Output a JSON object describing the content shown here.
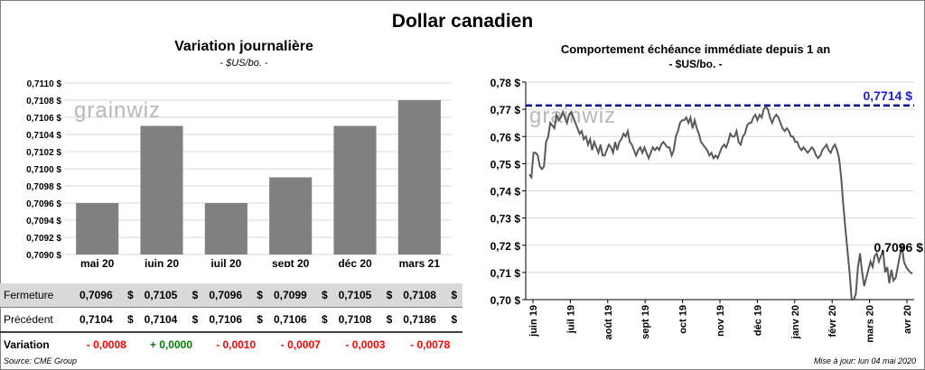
{
  "title": "Dollar canadien",
  "left_chart": {
    "title": "Variation  journalière",
    "subtitle": "- $US/bo. -"
  },
  "right_chart": {
    "title": "Comportement échéance immédiate depuis 1 an",
    "subtitle": "- $US/bo. -",
    "reference_label": "0,7714 $",
    "last_label": "0,7096 $"
  },
  "watermark": "grainwiz",
  "table": {
    "rows": [
      {
        "label": "Fermeture",
        "values": [
          "0,7096",
          "0,7105",
          "0,7096",
          "0,7099",
          "0,7105",
          "0,7108"
        ],
        "unit": "$"
      },
      {
        "label": "Précédent",
        "values": [
          "0,7104",
          "0,7104",
          "0,7106",
          "0,7106",
          "0,7108",
          "0,7186"
        ],
        "unit": "$"
      },
      {
        "label": "Variation",
        "values": [
          "- 0,0008",
          "+ 0,0000",
          "- 0,0010",
          "- 0,0007",
          "- 0,0003",
          "- 0,0078"
        ]
      }
    ]
  },
  "footer": {
    "source": "Source: CME Group",
    "updated": "Mise à jour: lun 04 mai 2020"
  },
  "colors": {
    "bar": "#808080",
    "line": "#595959",
    "ref_line": "#00008b",
    "ref_label": "#1f1fcc",
    "negative": "#ff0000",
    "positive": "#008000"
  },
  "chart_data": [
    {
      "type": "bar",
      "categories": [
        "mai 20",
        "juin 20",
        "juil 20",
        "sept 20",
        "déc 20",
        "mars 21"
      ],
      "values": [
        0.7096,
        0.7105,
        0.7096,
        0.7099,
        0.7105,
        0.7108
      ],
      "ylim": [
        0.709,
        0.711
      ],
      "yticks": [
        "0,7090 $",
        "0,7092 $",
        "0,7094 $",
        "0,7096 $",
        "0,7098 $",
        "0,7100 $",
        "0,7102 $",
        "0,7104 $",
        "0,7106 $",
        "0,7108 $",
        "0,7110 $"
      ],
      "grid": true
    },
    {
      "type": "line",
      "ylim": [
        0.7,
        0.78
      ],
      "yticks": [
        "0,70 $",
        "0,71 $",
        "0,72 $",
        "0,73 $",
        "0,74 $",
        "0,75 $",
        "0,76 $",
        "0,77 $",
        "0,78 $"
      ],
      "xticks": [
        "juin 19",
        "juil 19",
        "août 19",
        "sept 19",
        "oct 19",
        "nov 19",
        "déc 19",
        "janv 20",
        "févr 20",
        "mars 20",
        "avr 20"
      ],
      "reference": 0.7714,
      "last": 0.7096,
      "grid": true,
      "series": [
        {
          "values": [
            0.746,
            0.745,
            0.754,
            0.754,
            0.753,
            0.749,
            0.748,
            0.749,
            0.758,
            0.76,
            0.765,
            0.764,
            0.763,
            0.768,
            0.766,
            0.767,
            0.769,
            0.767,
            0.765,
            0.768,
            0.769,
            0.767,
            0.765,
            0.763,
            0.761,
            0.762,
            0.759,
            0.76,
            0.757,
            0.759,
            0.755,
            0.758,
            0.756,
            0.754,
            0.757,
            0.753,
            0.753,
            0.755,
            0.757,
            0.756,
            0.754,
            0.758,
            0.755,
            0.758,
            0.759,
            0.761,
            0.76,
            0.762,
            0.758,
            0.757,
            0.755,
            0.753,
            0.755,
            0.756,
            0.754,
            0.756,
            0.754,
            0.752,
            0.754,
            0.756,
            0.755,
            0.756,
            0.755,
            0.757,
            0.758,
            0.757,
            0.756,
            0.756,
            0.753,
            0.755,
            0.76,
            0.762,
            0.765,
            0.766,
            0.766,
            0.767,
            0.765,
            0.767,
            0.763,
            0.766,
            0.763,
            0.761,
            0.758,
            0.757,
            0.756,
            0.755,
            0.753,
            0.754,
            0.752,
            0.753,
            0.752,
            0.754,
            0.756,
            0.757,
            0.756,
            0.758,
            0.761,
            0.76,
            0.76,
            0.762,
            0.758,
            0.757,
            0.76,
            0.761,
            0.764,
            0.765,
            0.765,
            0.767,
            0.768,
            0.766,
            0.768,
            0.767,
            0.77,
            0.771,
            0.77,
            0.767,
            0.765,
            0.767,
            0.768,
            0.767,
            0.765,
            0.763,
            0.762,
            0.763,
            0.762,
            0.76,
            0.76,
            0.758,
            0.758,
            0.756,
            0.755,
            0.756,
            0.755,
            0.754,
            0.755,
            0.756,
            0.755,
            0.753,
            0.752,
            0.753,
            0.755,
            0.756,
            0.757,
            0.755,
            0.754,
            0.756,
            0.757,
            0.755,
            0.752,
            0.745,
            0.735,
            0.726,
            0.718,
            0.71,
            0.7,
            0.693,
            0.702,
            0.712,
            0.717,
            0.71,
            0.705,
            0.708,
            0.711,
            0.714,
            0.712,
            0.716,
            0.717,
            0.714,
            0.716,
            0.718,
            0.71,
            0.712,
            0.706,
            0.711,
            0.707,
            0.708,
            0.712,
            0.716,
            0.72,
            0.714,
            0.712,
            0.711,
            0.71,
            0.7096
          ]
        }
      ]
    }
  ]
}
